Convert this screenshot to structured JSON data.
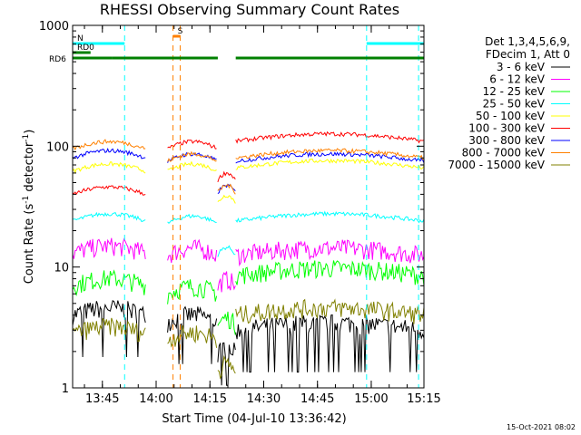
{
  "chart_data": {
    "type": "line",
    "title": "RHESSI Observing Summary Count Rates",
    "xlabel": "Start Time (04-Jul-10 13:36:42)",
    "ylabel_main": "Count Rate (s",
    "ylabel_sup1": "-1",
    "ylabel_mid": " detector",
    "ylabel_sup2": "-1",
    "ylabel_end": ")",
    "y_scale": "log",
    "ylim": [
      1,
      1000
    ],
    "xlim_minutes": [
      0,
      98
    ],
    "y_ticks": [
      {
        "value": 1,
        "label": "1"
      },
      {
        "value": 10,
        "label": "10"
      },
      {
        "value": 100,
        "label": "100"
      },
      {
        "value": 1000,
        "label": "1000"
      }
    ],
    "x_ticks": [
      {
        "minute": 8.3,
        "label": "13:45"
      },
      {
        "minute": 23.3,
        "label": "14:00"
      },
      {
        "minute": 38.3,
        "label": "14:15"
      },
      {
        "minute": 53.3,
        "label": "14:30"
      },
      {
        "minute": 68.3,
        "label": "14:45"
      },
      {
        "minute": 83.3,
        "label": "15:00"
      },
      {
        "minute": 98.3,
        "label": "15:15"
      }
    ],
    "legend_header": [
      "Det 1,3,4,5,6,9,",
      "FDecim 1, Att 0"
    ],
    "series": [
      {
        "name": "3 - 6 keV",
        "color": "#000000",
        "before": 4,
        "mid": 3.5,
        "after": 3,
        "floor": 1
      },
      {
        "name": "6 - 12 keV",
        "color": "#ff00ff",
        "before": 13,
        "mid": 12.5,
        "after": 12.5
      },
      {
        "name": "12 - 25 keV",
        "color": "#00ff00",
        "before": 7,
        "mid": 6,
        "after": 8.5
      },
      {
        "name": "25 - 50 keV",
        "color": "#00ffff",
        "before": 24,
        "mid": 23,
        "after": 24
      },
      {
        "name": "50 - 100 keV",
        "color": "#ffff00",
        "before": 62,
        "mid": 62,
        "after": 66
      },
      {
        "name": "100 - 300 keV",
        "color": "#ff0000",
        "before": 40,
        "mid": 95,
        "after": 110
      },
      {
        "name": "300 - 800 keV",
        "color": "#0000ff",
        "before": 80,
        "mid": 75,
        "after": 75
      },
      {
        "name": "800 - 7000 keV",
        "color": "#ff8000",
        "before": 95,
        "mid": 75,
        "after": 80
      },
      {
        "name": "7000 - 15000 keV",
        "color": "#808000",
        "before": 2.8,
        "mid": 2.5,
        "after": 4
      }
    ],
    "segments": {
      "seg1": [
        0,
        20.5
      ],
      "seg2": [
        26.5,
        40.5
      ],
      "seg3": [
        40.5,
        45.5
      ],
      "seg4": [
        45.5,
        98
      ]
    },
    "saa_markers_minutes": [
      28,
      30
    ],
    "night_markers_minutes": [
      14.5,
      82,
      96.5
    ],
    "flags": [
      {
        "label": "N",
        "color": "#00ffff",
        "ranges": [
          [
            0,
            14.5
          ],
          [
            82,
            98
          ]
        ],
        "level": 3
      },
      {
        "label": "S",
        "color": "#ff8000",
        "ranges": [
          [
            28,
            30
          ]
        ],
        "level": 4
      },
      {
        "label": "RD0",
        "color": "#008000",
        "ranges": [
          [
            0,
            5
          ]
        ],
        "level": 2
      },
      {
        "label": "RD6",
        "color": "#008000",
        "ranges": [
          [
            0,
            11
          ],
          [
            11,
            40.5
          ],
          [
            45.5,
            98
          ]
        ],
        "level": 1
      }
    ],
    "footer_date": "15-Oct-2021 08:02"
  }
}
